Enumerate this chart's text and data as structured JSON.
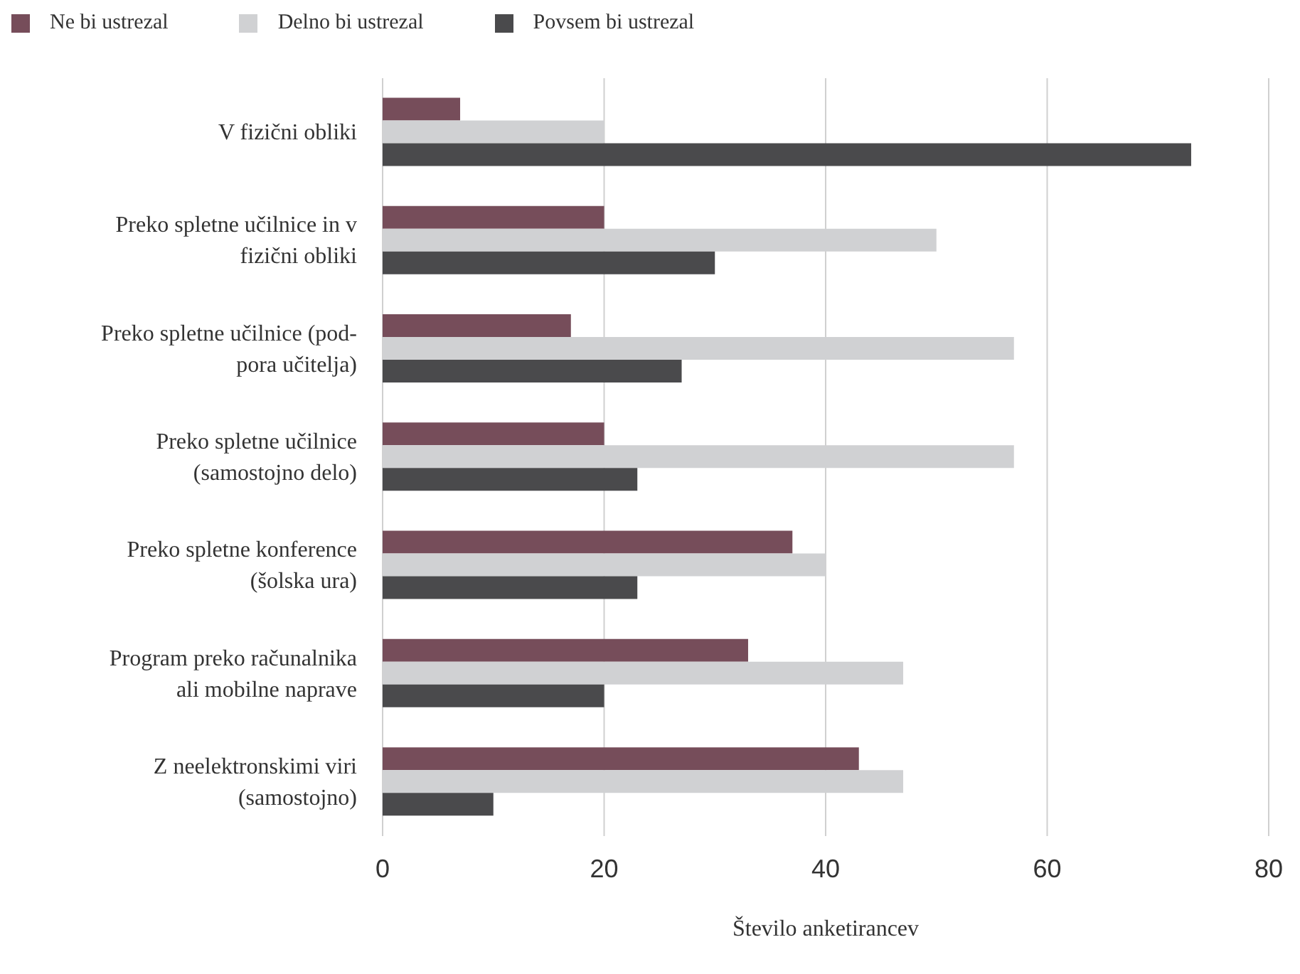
{
  "chart_data": {
    "type": "bar",
    "orientation": "horizontal",
    "xlabel": "Število anketirancev",
    "categories": [
      "V fizični obliki",
      "Preko spletne učilnice in v\nfizični obliki",
      "Preko spletne učilnice (pod-\npora učitelja)",
      "Preko spletne učilnice\n(samostojno delo)",
      "Preko spletne konference\n(šolska ura)",
      "Program preko računalnika\nali mobilne naprave",
      "Z neelektronskimi viri\n(samostojno)"
    ],
    "series": [
      {
        "name": "Ne bi ustrezal",
        "color": "#764d5a",
        "values": [
          7,
          20,
          17,
          20,
          37,
          33,
          43
        ]
      },
      {
        "name": "Delno bi ustrezal",
        "color": "#d0d1d3",
        "values": [
          20,
          50,
          57,
          57,
          40,
          47,
          47
        ]
      },
      {
        "name": "Povsem bi ustrezal",
        "color": "#4a4a4c",
        "values": [
          73,
          30,
          27,
          23,
          23,
          20,
          10
        ]
      }
    ],
    "xlim": [
      0,
      80
    ],
    "xticks": [
      0,
      20,
      40,
      60,
      80
    ],
    "grid": "x",
    "legend": "top left"
  }
}
